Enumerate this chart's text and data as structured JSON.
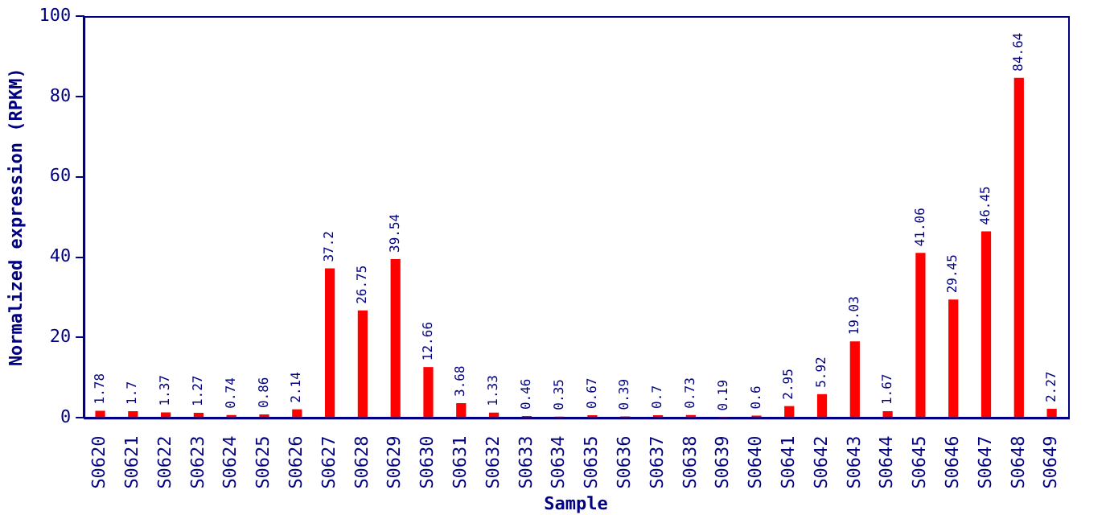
{
  "chart_data": {
    "type": "bar",
    "xlabel": "Sample",
    "ylabel": "Normalized expression (RPKM)",
    "categories": [
      "S0620",
      "S0621",
      "S0622",
      "S0623",
      "S0624",
      "S0625",
      "S0626",
      "S0627",
      "S0628",
      "S0629",
      "S0630",
      "S0631",
      "S0632",
      "S0633",
      "S0634",
      "S0635",
      "S0636",
      "S0637",
      "S0638",
      "S0639",
      "S0640",
      "S0641",
      "S0642",
      "S0643",
      "S0644",
      "S0645",
      "S0646",
      "S0647",
      "S0648",
      "S0649"
    ],
    "values": [
      1.78,
      1.7,
      1.37,
      1.27,
      0.74,
      0.86,
      2.14,
      37.2,
      26.75,
      39.54,
      12.66,
      3.68,
      1.33,
      0.46,
      0.35,
      0.67,
      0.39,
      0.7,
      0.73,
      0.19,
      0.6,
      2.95,
      5.92,
      19.03,
      1.67,
      41.06,
      29.45,
      46.45,
      84.64,
      2.27
    ],
    "color": "#ff0000",
    "ylim": [
      0,
      100
    ],
    "yticks": [
      0,
      20,
      40,
      60,
      80,
      100
    ],
    "grid": false,
    "legend": false,
    "data_labels": true
  }
}
